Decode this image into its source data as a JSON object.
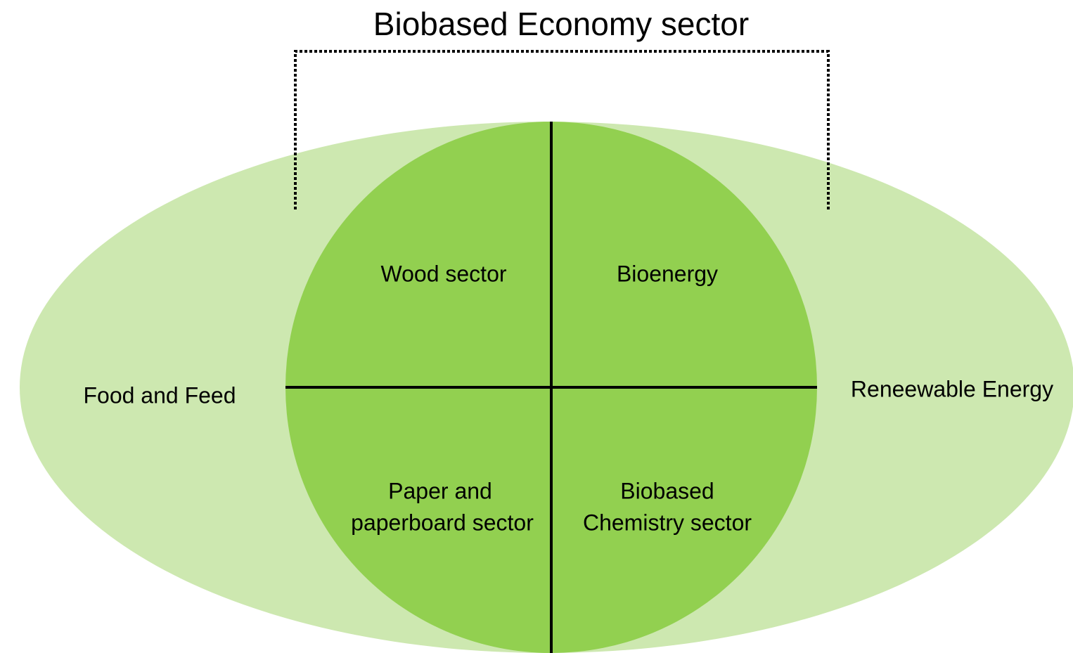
{
  "title": "Biobased Economy sector",
  "outer_labels": {
    "left": "Food and Feed",
    "right": "Reneewable Energy"
  },
  "quadrants": [
    {
      "lines": [
        "Wood sector"
      ]
    },
    {
      "lines": [
        "Bioenergy"
      ]
    },
    {
      "lines": [
        "Paper and",
        "paperboard sector"
      ]
    },
    {
      "lines": [
        "Biobased",
        "Chemistry sector"
      ]
    }
  ]
}
